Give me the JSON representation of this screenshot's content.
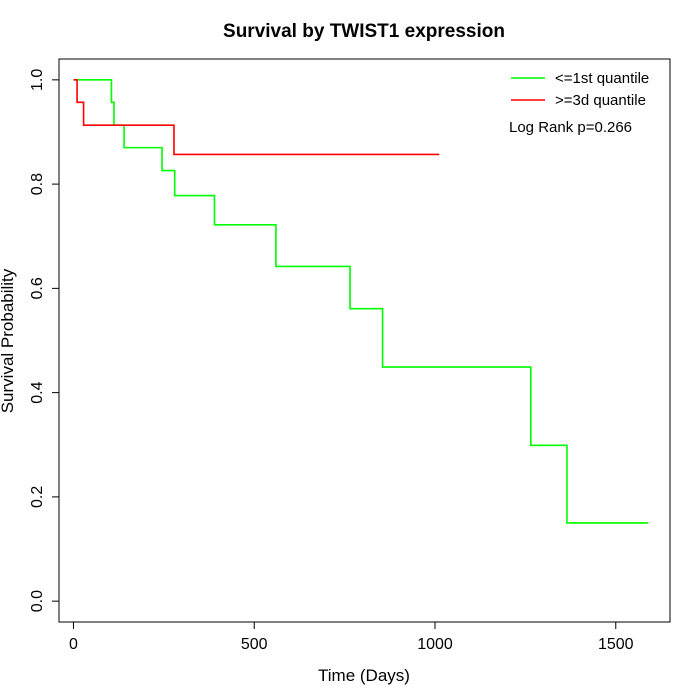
{
  "chart_data": {
    "type": "line",
    "title": "Survival by TWIST1 expression",
    "xlabel": "Time (Days)",
    "ylabel": "Survival Probability",
    "xlim": [
      -40,
      1650
    ],
    "ylim": [
      -0.04,
      1.04
    ],
    "x_ticks": [
      0,
      500,
      1000,
      1500
    ],
    "x_tick_labels": [
      "0",
      "500",
      "1000",
      "1500"
    ],
    "y_ticks": [
      0.0,
      0.2,
      0.4,
      0.6,
      0.8,
      1.0
    ],
    "y_tick_labels": [
      "0.0",
      "0.2",
      "0.4",
      "0.6",
      "0.8",
      "1.0"
    ],
    "grid": false,
    "legend_position": "top-right",
    "annotation": "Log Rank p=0.266",
    "series": [
      {
        "name": "<=1st quantile",
        "color": "#00ff00",
        "step": true,
        "x": [
          0,
          105,
          112,
          140,
          245,
          280,
          390,
          560,
          765,
          855,
          1265,
          1365,
          1590
        ],
        "y": [
          1.0,
          0.957,
          0.913,
          0.87,
          0.826,
          0.778,
          0.722,
          0.642,
          0.561,
          0.449,
          0.299,
          0.15,
          0.15
        ]
      },
      {
        "name": ">=3d quantile",
        "color": "#ff0000",
        "step": true,
        "x": [
          0,
          10,
          28,
          278,
          1012
        ],
        "y": [
          1.0,
          0.957,
          0.913,
          0.857,
          0.857
        ]
      }
    ]
  }
}
